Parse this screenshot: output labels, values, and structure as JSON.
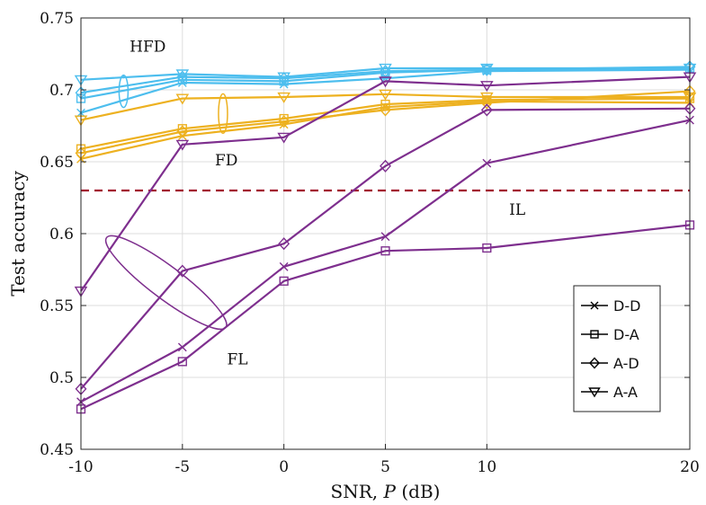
{
  "chart_data": {
    "type": "line",
    "xlabel_prefix": "SNR, ",
    "xlabel_var": "P",
    "xlabel_suffix": " (dB)",
    "ylabel": "Test accuracy",
    "x_ticks": [
      -10,
      -5,
      0,
      5,
      10,
      20
    ],
    "y_ticks": [
      0.45,
      0.5,
      0.55,
      0.6,
      0.65,
      0.7,
      0.75
    ],
    "x_tick_labels": [
      "-10",
      "-5",
      "0",
      "5",
      "10",
      "20"
    ],
    "y_tick_labels": [
      "0.45",
      "0.5",
      "0.55",
      "0.6",
      "0.65",
      "0.7",
      "0.75"
    ],
    "xlim": [
      -10,
      20
    ],
    "ylim": [
      0.45,
      0.75
    ],
    "grid": true,
    "x": [
      -10,
      -5,
      0,
      5,
      10,
      20
    ],
    "colors": {
      "HFD": "#4dbeee",
      "FD": "#edb120",
      "FL": "#7e2f8e",
      "IL": "#a2142f"
    },
    "reference_line": {
      "name": "IL",
      "value": 0.63,
      "label": "IL"
    },
    "annotations": [
      {
        "text": "HFD",
        "group": "HFD"
      },
      {
        "text": "FD",
        "group": "FD"
      },
      {
        "text": "FL",
        "group": "FL"
      }
    ],
    "legend": {
      "position": "lower-right",
      "entries": [
        {
          "label": "D-D",
          "marker": "x"
        },
        {
          "label": "D-A",
          "marker": "square"
        },
        {
          "label": "A-D",
          "marker": "diamond"
        },
        {
          "label": "A-A",
          "marker": "triangle-down"
        }
      ]
    },
    "series": [
      {
        "name": "HFD D-D",
        "group": "HFD",
        "marker": "x",
        "values": [
          0.684,
          0.705,
          0.704,
          0.708,
          0.713,
          0.714
        ]
      },
      {
        "name": "HFD D-A",
        "group": "HFD",
        "marker": "square",
        "values": [
          0.694,
          0.707,
          0.706,
          0.712,
          0.714,
          0.715
        ]
      },
      {
        "name": "HFD A-D",
        "group": "HFD",
        "marker": "diamond",
        "values": [
          0.698,
          0.709,
          0.708,
          0.713,
          0.714,
          0.716
        ]
      },
      {
        "name": "HFD A-A",
        "group": "HFD",
        "marker": "triangle-down",
        "values": [
          0.707,
          0.711,
          0.709,
          0.715,
          0.715,
          0.715
        ]
      },
      {
        "name": "FD D-D",
        "group": "FD",
        "marker": "x",
        "values": [
          0.652,
          0.668,
          0.676,
          0.688,
          0.692,
          0.691
        ]
      },
      {
        "name": "FD D-A",
        "group": "FD",
        "marker": "square",
        "values": [
          0.659,
          0.673,
          0.68,
          0.69,
          0.693,
          0.694
        ]
      },
      {
        "name": "FD A-D",
        "group": "FD",
        "marker": "diamond",
        "values": [
          0.656,
          0.671,
          0.678,
          0.686,
          0.691,
          0.699
        ]
      },
      {
        "name": "FD A-A",
        "group": "FD",
        "marker": "triangle-down",
        "values": [
          0.679,
          0.694,
          0.695,
          0.697,
          0.695,
          0.695
        ]
      },
      {
        "name": "FL D-D",
        "group": "FL",
        "marker": "x",
        "values": [
          0.483,
          0.521,
          0.577,
          0.598,
          0.649,
          0.679
        ]
      },
      {
        "name": "FL D-A",
        "group": "FL",
        "marker": "square",
        "values": [
          0.478,
          0.511,
          0.567,
          0.588,
          0.59,
          0.606
        ]
      },
      {
        "name": "FL A-D",
        "group": "FL",
        "marker": "diamond",
        "values": [
          0.492,
          0.574,
          0.593,
          0.647,
          0.686,
          0.687
        ]
      },
      {
        "name": "FL A-A",
        "group": "FL",
        "marker": "triangle-down",
        "values": [
          0.56,
          0.662,
          0.667,
          0.706,
          0.703,
          0.709
        ]
      }
    ]
  }
}
